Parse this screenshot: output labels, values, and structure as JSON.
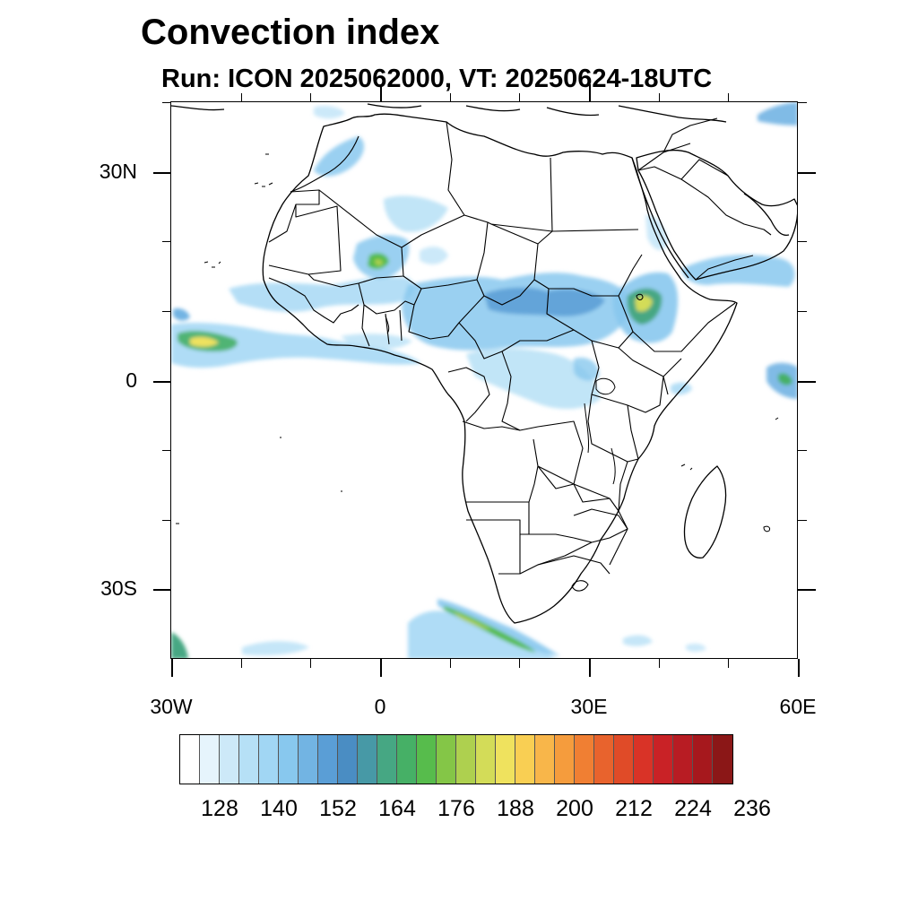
{
  "title": "Convection index",
  "subtitle": "Run: ICON 2025062000,  VT: 20250624-18UTC",
  "lat_ticks": [
    {
      "label": "30N",
      "lat": 30
    },
    {
      "label": "0",
      "lat": 0
    },
    {
      "label": "30S",
      "lat": -30
    }
  ],
  "lon_ticks": [
    {
      "label": "30W",
      "lon": -30
    },
    {
      "label": "0",
      "lon": 0
    },
    {
      "label": "30E",
      "lon": 30
    },
    {
      "label": "60E",
      "lon": 60
    }
  ],
  "colorbar": {
    "colors": [
      "#ffffff",
      "#e6f4fc",
      "#cde9f8",
      "#b6e0f6",
      "#a1d6f4",
      "#88c8ee",
      "#72b4e3",
      "#5a9ed6",
      "#4a8dc3",
      "#4799a6",
      "#46a783",
      "#46b066",
      "#57bc4c",
      "#84c647",
      "#aed04f",
      "#d3dc58",
      "#efe25e",
      "#f9cf53",
      "#f8b64a",
      "#f59c3d",
      "#f07f33",
      "#e8632d",
      "#e04b28",
      "#d93327",
      "#c92226",
      "#b81c23",
      "#a6181d",
      "#8b1717"
    ],
    "labels": [
      "128",
      "140",
      "152",
      "164",
      "176",
      "188",
      "200",
      "212",
      "224",
      "236"
    ],
    "label_box_index": [
      2,
      5,
      8,
      11,
      14,
      17,
      20,
      23,
      26,
      29
    ]
  },
  "chart_data": {
    "type": "heatmap",
    "title": "Convection index",
    "subtitle": "Run: ICON 2025062000,  VT: 20250624-18UTC",
    "xlabel": "",
    "ylabel": "",
    "xlim": [
      -30,
      60
    ],
    "ylim": [
      -40,
      40
    ],
    "x_tick_labels": [
      "30W",
      "0",
      "30E",
      "60E"
    ],
    "y_tick_labels": [
      "30N",
      "0",
      "30S"
    ],
    "colorbar_levels": [
      120,
      124,
      128,
      132,
      136,
      140,
      144,
      148,
      152,
      156,
      160,
      164,
      168,
      172,
      176,
      180,
      184,
      188,
      192,
      196,
      200,
      204,
      208,
      212,
      216,
      220,
      224,
      228,
      232,
      236
    ],
    "colorbar_labels": [
      "128",
      "140",
      "152",
      "164",
      "176",
      "188",
      "200",
      "212",
      "224",
      "236"
    ],
    "regions": [
      {
        "lon": -27,
        "lat": 5.5,
        "value": 168
      },
      {
        "lon": 37,
        "lat": 11,
        "value": 172
      },
      {
        "lon": 8,
        "lat": -35,
        "value": 164
      },
      {
        "lon": -3,
        "lat": 17,
        "value": 160
      },
      {
        "lon": 58,
        "lat": 0.5,
        "value": 160
      },
      {
        "lon": 20,
        "lat": 11,
        "value": 148
      },
      {
        "lon": -7,
        "lat": 28,
        "value": 140
      },
      {
        "lon": 52,
        "lat": 16,
        "value": 136
      }
    ]
  }
}
